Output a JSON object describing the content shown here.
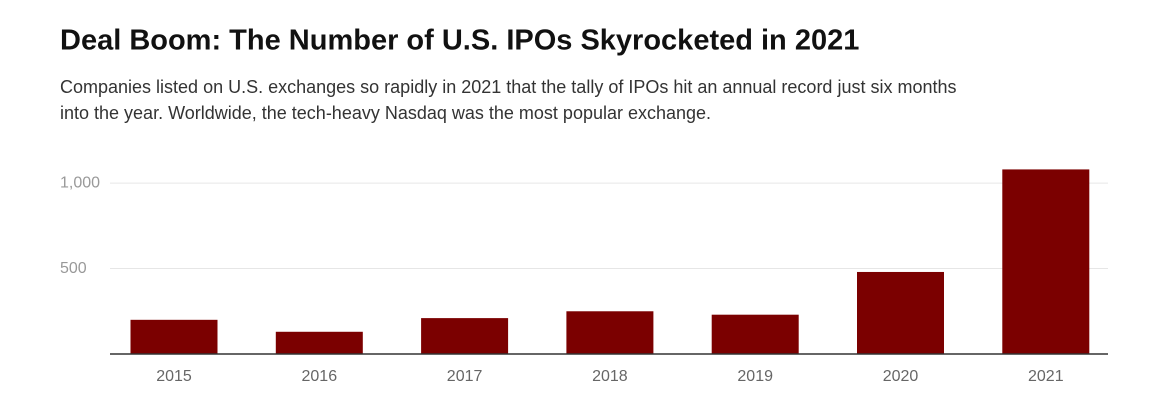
{
  "chart_data": {
    "type": "bar",
    "title": "Deal Boom: The Number of U.S. IPOs Skyrocketed in 2021",
    "subtitle": [
      "Companies listed on U.S. exchanges so rapidly in 2021 that the tally of IPOs hit an annual record just six months",
      "into the year. Worldwide, the tech-heavy Nasdaq was the most popular exchange."
    ],
    "categories": [
      "2015",
      "2016",
      "2017",
      "2018",
      "2019",
      "2020",
      "2021"
    ],
    "values": [
      200,
      130,
      210,
      250,
      230,
      480,
      1080
    ],
    "color": "#7b0000",
    "ylim": [
      0,
      1100
    ],
    "yticks": [
      500,
      {
        "value": 1000,
        "label": "1,000"
      }
    ],
    "grid": true
  }
}
